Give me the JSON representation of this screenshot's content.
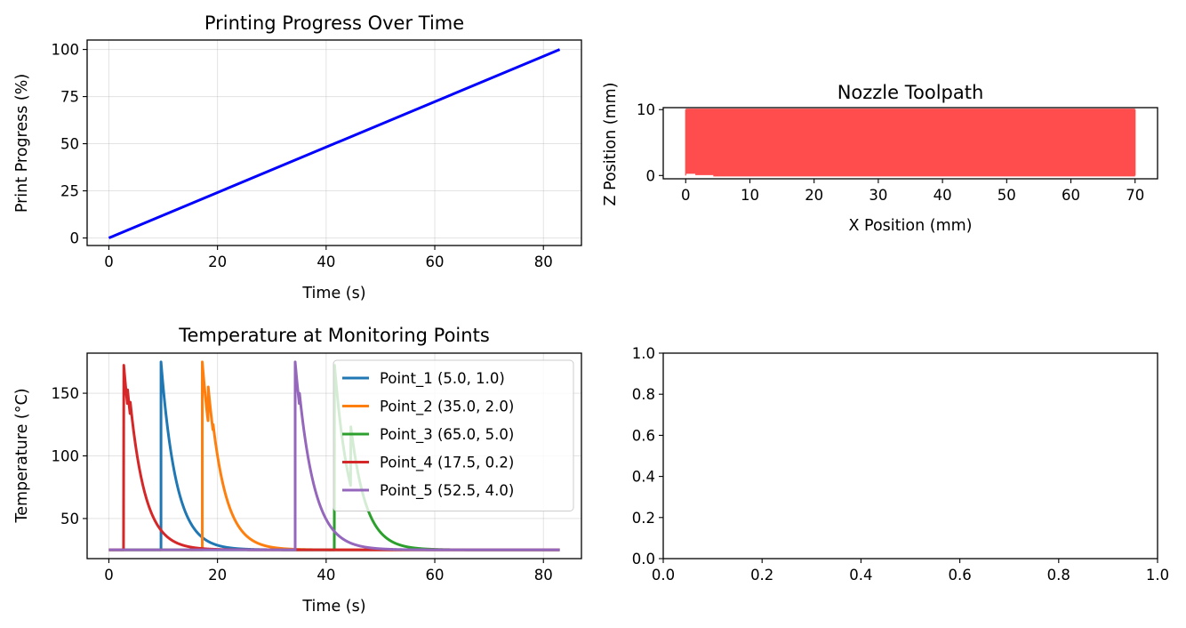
{
  "chart_data": [
    {
      "type": "line",
      "title": "Printing Progress Over Time",
      "xlabel": "Time (s)",
      "ylabel": "Print Progress (%)",
      "xlim": [
        -4,
        87
      ],
      "ylim": [
        -4,
        105
      ],
      "xticks": [
        0,
        20,
        40,
        60,
        80
      ],
      "yticks": [
        0,
        25,
        50,
        75,
        100
      ],
      "grid": true,
      "series": [
        {
          "color": "#0000ff",
          "x": [
            0,
            83
          ],
          "y": [
            0,
            100
          ]
        }
      ]
    },
    {
      "type": "scatter",
      "title": "Nozzle Toolpath",
      "xlabel": "X Position (mm)",
      "ylabel": "Z Position (mm)",
      "xlim": [
        -3.5,
        73.5
      ],
      "ylim": [
        -0.5,
        10.3
      ],
      "xticks": [
        0,
        10,
        20,
        30,
        40,
        50,
        60,
        70
      ],
      "yticks": [
        0,
        10
      ],
      "grid": false,
      "toolpath": {
        "color": "#ff4d4d",
        "x_range": [
          0,
          70
        ],
        "z_range": [
          0,
          10
        ],
        "layer_height": 0.2
      }
    },
    {
      "type": "line",
      "title": "Temperature at Monitoring Points",
      "xlabel": "Time (s)",
      "ylabel": "Temperature (°C)",
      "xlim": [
        -4,
        87
      ],
      "ylim": [
        18,
        182
      ],
      "xticks": [
        0,
        20,
        40,
        60,
        80
      ],
      "yticks": [
        50,
        100,
        150
      ],
      "grid": true,
      "legend": "top-right",
      "ambient": 25,
      "peak": 175,
      "t_end": 83,
      "series": [
        {
          "name": "Point_1 (5.0, 1.0)",
          "color": "#1f77b4",
          "t_on": 9.6,
          "tau": 2.8,
          "reheat": []
        },
        {
          "name": "Point_2 (35.0, 2.0)",
          "color": "#ff7f0e",
          "t_on": 17.2,
          "tau": 2.8,
          "reheat": [
            [
              18.3,
              155
            ],
            [
              19.2,
              125
            ]
          ]
        },
        {
          "name": "Point_3 (65.0, 5.0)",
          "color": "#2ca02c",
          "t_on": 41.5,
          "tau": 2.8,
          "reheat": [
            [
              44.5,
              125
            ]
          ]
        },
        {
          "name": "Point_4 (17.5, 0.2)",
          "color": "#d62728",
          "t_on": 2.7,
          "tau": 2.8,
          "reheat": [
            [
              3.4,
              155
            ],
            [
              3.9,
              145
            ]
          ]
        },
        {
          "name": "Point_5 (52.5, 4.0)",
          "color": "#9467bd",
          "t_on": 34.3,
          "tau": 3.0,
          "reheat": [
            [
              35.1,
              150
            ]
          ]
        }
      ]
    },
    {
      "type": "line",
      "title": "",
      "xlabel": "",
      "ylabel": "",
      "xlim": [
        0,
        1
      ],
      "ylim": [
        0,
        1
      ],
      "xticks": [
        0.0,
        0.2,
        0.4,
        0.6,
        0.8,
        1.0
      ],
      "yticks": [
        0.0,
        0.2,
        0.4,
        0.6,
        0.8,
        1.0
      ],
      "tick_format": "1dp",
      "grid": false,
      "series": []
    }
  ]
}
